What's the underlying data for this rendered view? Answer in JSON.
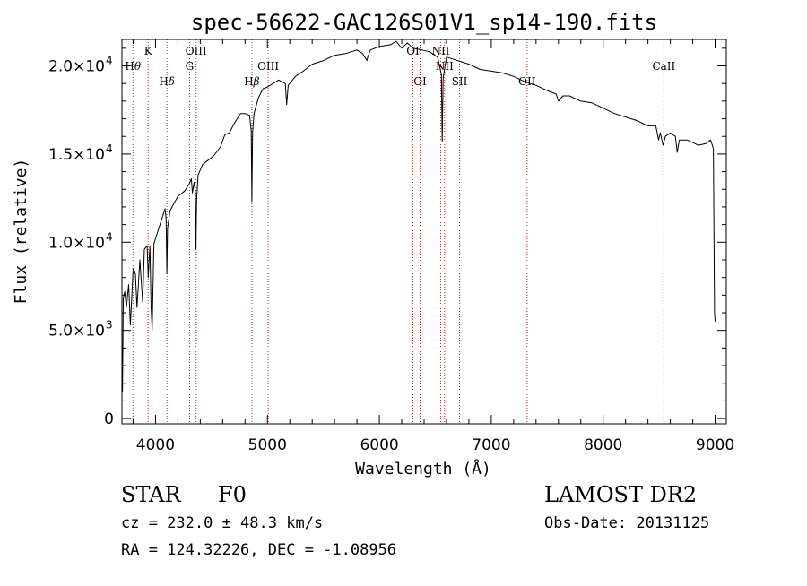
{
  "chart_data": {
    "type": "line",
    "title": "spec-56622-GAC126S01V1_sp14-190.fits",
    "xlabel": "Wavelength (Å)",
    "ylabel": "Flux (relative)",
    "xlim": [
      3700,
      9100
    ],
    "ylim": [
      -300,
      21500
    ],
    "x_ticks": [
      {
        "value": 4000,
        "label": "4000"
      },
      {
        "value": 5000,
        "label": "5000"
      },
      {
        "value": 6000,
        "label": "6000"
      },
      {
        "value": 7000,
        "label": "7000"
      },
      {
        "value": 8000,
        "label": "8000"
      },
      {
        "value": 9000,
        "label": "9000"
      }
    ],
    "y_ticks": [
      {
        "value": 0,
        "mant": "0",
        "exp": ""
      },
      {
        "value": 5000,
        "mant": "5.0×10",
        "exp": "3"
      },
      {
        "value": 10000,
        "mant": "1.0×10",
        "exp": "4"
      },
      {
        "value": 15000,
        "mant": "1.5×10",
        "exp": "4"
      },
      {
        "value": 20000,
        "mant": "2.0×10",
        "exp": "4"
      }
    ],
    "series": [
      {
        "color": "#000000",
        "points": [
          [
            3705,
            1500
          ],
          [
            3712,
            6800
          ],
          [
            3725,
            7200
          ],
          [
            3740,
            6300
          ],
          [
            3760,
            7600
          ],
          [
            3775,
            5300
          ],
          [
            3800,
            8500
          ],
          [
            3820,
            8200
          ],
          [
            3835,
            6300
          ],
          [
            3860,
            9000
          ],
          [
            3885,
            6600
          ],
          [
            3900,
            9600
          ],
          [
            3925,
            9800
          ],
          [
            3935,
            8000
          ],
          [
            3950,
            9800
          ],
          [
            3960,
            6300
          ],
          [
            3970,
            5000
          ],
          [
            3985,
            9900
          ],
          [
            4000,
            10200
          ],
          [
            4050,
            11200
          ],
          [
            4085,
            11900
          ],
          [
            4095,
            11300
          ],
          [
            4101,
            8200
          ],
          [
            4108,
            10800
          ],
          [
            4130,
            11800
          ],
          [
            4200,
            12600
          ],
          [
            4260,
            12900
          ],
          [
            4300,
            13300
          ],
          [
            4320,
            13600
          ],
          [
            4330,
            12800
          ],
          [
            4345,
            13400
          ],
          [
            4355,
            12900
          ],
          [
            4361,
            9600
          ],
          [
            4367,
            12400
          ],
          [
            4380,
            13800
          ],
          [
            4420,
            14400
          ],
          [
            4480,
            14700
          ],
          [
            4520,
            14900
          ],
          [
            4580,
            15400
          ],
          [
            4620,
            16100
          ],
          [
            4660,
            16200
          ],
          [
            4700,
            16700
          ],
          [
            4760,
            17300
          ],
          [
            4800,
            17300
          ],
          [
            4840,
            17200
          ],
          [
            4855,
            16300
          ],
          [
            4861,
            12300
          ],
          [
            4867,
            16200
          ],
          [
            4880,
            17300
          ],
          [
            4920,
            18200
          ],
          [
            4960,
            18700
          ],
          [
            5000,
            18800
          ],
          [
            5100,
            19200
          ],
          [
            5160,
            19000
          ],
          [
            5172,
            17800
          ],
          [
            5185,
            18900
          ],
          [
            5250,
            19400
          ],
          [
            5320,
            19700
          ],
          [
            5400,
            20100
          ],
          [
            5500,
            20300
          ],
          [
            5600,
            20600
          ],
          [
            5700,
            20700
          ],
          [
            5800,
            20900
          ],
          [
            5850,
            20700
          ],
          [
            5889,
            20300
          ],
          [
            5896,
            20500
          ],
          [
            5920,
            20900
          ],
          [
            6000,
            21100
          ],
          [
            6100,
            21200
          ],
          [
            6150,
            21400
          ],
          [
            6200,
            21000
          ],
          [
            6250,
            21300
          ],
          [
            6300,
            21000
          ],
          [
            6380,
            20900
          ],
          [
            6450,
            20800
          ],
          [
            6520,
            20500
          ],
          [
            6555,
            19500
          ],
          [
            6562,
            15700
          ],
          [
            6570,
            19300
          ],
          [
            6600,
            20500
          ],
          [
            6700,
            20300
          ],
          [
            6800,
            20100
          ],
          [
            6900,
            19800
          ],
          [
            7000,
            19700
          ],
          [
            7100,
            19600
          ],
          [
            7200,
            19400
          ],
          [
            7300,
            19100
          ],
          [
            7400,
            18900
          ],
          [
            7500,
            18600
          ],
          [
            7580,
            18400
          ],
          [
            7600,
            18000
          ],
          [
            7640,
            18300
          ],
          [
            7700,
            18300
          ],
          [
            7800,
            18000
          ],
          [
            7900,
            17900
          ],
          [
            8000,
            17600
          ],
          [
            8100,
            17300
          ],
          [
            8200,
            17100
          ],
          [
            8300,
            16900
          ],
          [
            8400,
            16600
          ],
          [
            8470,
            16600
          ],
          [
            8495,
            15800
          ],
          [
            8510,
            16200
          ],
          [
            8535,
            15500
          ],
          [
            8555,
            16000
          ],
          [
            8600,
            16200
          ],
          [
            8645,
            16000
          ],
          [
            8662,
            15100
          ],
          [
            8680,
            15800
          ],
          [
            8750,
            15800
          ],
          [
            8850,
            15500
          ],
          [
            8920,
            15600
          ],
          [
            8960,
            15800
          ],
          [
            8985,
            15300
          ],
          [
            8995,
            6000
          ],
          [
            9000,
            5500
          ]
        ]
      }
    ],
    "lines": [
      {
        "x": 3798,
        "label": "H",
        "greek": "θ",
        "row": 2
      },
      {
        "x": 3934,
        "label": "K",
        "greek": "",
        "row": 1
      },
      {
        "x": 4102,
        "label": "H",
        "greek": "δ",
        "row": 3
      },
      {
        "x": 4304,
        "label": "G",
        "greek": "",
        "row": 2
      },
      {
        "x": 4363,
        "label": "OIII",
        "greek": "",
        "row": 1
      },
      {
        "x": 4861,
        "label": "H",
        "greek": "β",
        "row": 3
      },
      {
        "x": 5007,
        "label": "OIII",
        "greek": "",
        "row": 2
      },
      {
        "x": 6300,
        "label": "OI",
        "greek": "",
        "row": 1
      },
      {
        "x": 6364,
        "label": "OI",
        "greek": "",
        "row": 3
      },
      {
        "x": 6548,
        "label": "NII",
        "greek": "",
        "row": 1
      },
      {
        "x": 6583,
        "label": "NII",
        "greek": "",
        "row": 2
      },
      {
        "x": 6717,
        "label": "SII",
        "greek": "",
        "row": 3
      },
      {
        "x": 7320,
        "label": "OII",
        "greek": "",
        "row": 3
      },
      {
        "x": 8542,
        "label": "CaII",
        "greek": "",
        "row": 2
      }
    ]
  },
  "info": {
    "class_label": "STAR",
    "subclass": "F0",
    "survey": "LAMOST DR2",
    "redshift": "cz = 232.0 ± 48.3 km/s",
    "obs_date": "Obs-Date: 20131125",
    "coords": "RA = 124.32226, DEC =  -1.08956"
  },
  "colors": {
    "spectrum": "#000000",
    "line_marker": "#a52a2a",
    "axes": "#000000"
  }
}
